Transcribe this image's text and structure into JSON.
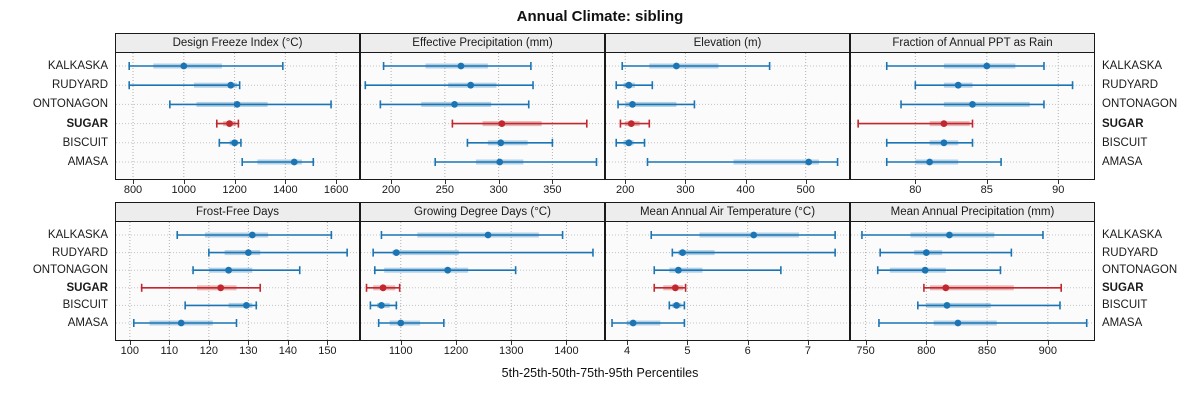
{
  "title": "Annual Climate: sibling",
  "caption": "5th-25th-50th-75th-95th Percentiles",
  "sites": [
    "KALKASKA",
    "RUDYARD",
    "ONTONAGON",
    "SUGAR",
    "BISCUIT",
    "AMASA"
  ],
  "highlight_site": "SUGAR",
  "colors": {
    "series_normal": "#1b75b5",
    "series_highlight": "#c1272d",
    "band_opacity": 0.32,
    "strip_bg": "#ededed",
    "panel_bg": "#fbfbfb",
    "grid": "#b0b0b0",
    "border": "#1a1a1a"
  },
  "chart_data": {
    "type": "percentile-dotplot-grid",
    "layout": "2 rows x 4 cols",
    "percentiles": [
      "5th",
      "25th",
      "50th",
      "75th",
      "95th"
    ],
    "grid": "dotted",
    "panels": [
      {
        "title": "Design Freeze Index (°C)",
        "ticks": [
          800,
          1000,
          1200,
          1400,
          1600
        ],
        "domain": [
          733,
          1690
        ],
        "series": {
          "KALKASKA": [
            785,
            880,
            1000,
            1150,
            1390
          ],
          "RUDYARD": [
            785,
            1040,
            1185,
            1210,
            1220
          ],
          "ONTONAGON": [
            945,
            1050,
            1210,
            1330,
            1580
          ],
          "SUGAR": [
            1130,
            1155,
            1180,
            1205,
            1215
          ],
          "BISCUIT": [
            1140,
            1180,
            1200,
            1215,
            1225
          ],
          "AMASA": [
            1230,
            1290,
            1435,
            1465,
            1510
          ]
        }
      },
      {
        "title": "Effective Precipitation (mm)",
        "ticks": [
          200,
          250,
          300,
          350
        ],
        "domain": [
          172,
          398
        ],
        "series": {
          "KALKASKA": [
            193,
            232,
            265,
            290,
            330
          ],
          "RUDYARD": [
            176,
            253,
            274,
            298,
            332
          ],
          "ONTONAGON": [
            190,
            228,
            259,
            293,
            328
          ],
          "SUGAR": [
            257,
            285,
            303,
            340,
            382
          ],
          "BISCUIT": [
            271,
            290,
            302,
            327,
            350
          ],
          "AMASA": [
            241,
            279,
            301,
            323,
            391
          ]
        }
      },
      {
        "title": "Elevation (m)",
        "ticks": [
          200,
          300,
          400,
          500
        ],
        "domain": [
          168,
          572
        ],
        "series": {
          "KALKASKA": [
            195,
            240,
            285,
            355,
            440
          ],
          "RUDYARD": [
            185,
            197,
            206,
            216,
            245
          ],
          "ONTONAGON": [
            188,
            200,
            212,
            285,
            315
          ],
          "SUGAR": [
            192,
            200,
            210,
            224,
            240
          ],
          "BISCUIT": [
            185,
            197,
            206,
            214,
            232
          ],
          "AMASA": [
            237,
            380,
            505,
            522,
            553
          ]
        }
      },
      {
        "title": "Fraction of Annual PPT as Rain",
        "ticks": [
          80,
          85,
          90
        ],
        "domain": [
          75.5,
          92.5
        ],
        "series": {
          "KALKASKA": [
            78,
            82,
            85,
            87,
            89
          ],
          "RUDYARD": [
            80,
            82,
            83,
            84,
            91
          ],
          "ONTONAGON": [
            79,
            82,
            84,
            88,
            89
          ],
          "SUGAR": [
            76,
            81,
            82,
            83.8,
            84
          ],
          "BISCUIT": [
            78,
            81,
            82,
            83,
            84
          ],
          "AMASA": [
            78,
            80,
            81,
            83,
            86
          ]
        }
      },
      {
        "title": "Frost-Free Days",
        "ticks": [
          100,
          110,
          120,
          130,
          140,
          150
        ],
        "domain": [
          96.5,
          158
        ],
        "series": {
          "KALKASKA": [
            112,
            119,
            131,
            135,
            151
          ],
          "RUDYARD": [
            120,
            124,
            130,
            133,
            155
          ],
          "ONTONAGON": [
            116,
            120,
            125,
            131,
            143
          ],
          "SUGAR": [
            103,
            117,
            123,
            127,
            133
          ],
          "BISCUIT": [
            114,
            125,
            129.5,
            131,
            132
          ],
          "AMASA": [
            101,
            105,
            113,
            121,
            127
          ]
        }
      },
      {
        "title": "Growing Degree Days (°C)",
        "ticks": [
          1100,
          1200,
          1300,
          1400
        ],
        "domain": [
          1028,
          1468
        ],
        "series": {
          "KALKASKA": [
            1065,
            1130,
            1258,
            1350,
            1393
          ],
          "RUDYARD": [
            1050,
            1085,
            1092,
            1205,
            1448
          ],
          "ONTONAGON": [
            1053,
            1070,
            1185,
            1222,
            1308
          ],
          "SUGAR": [
            1038,
            1050,
            1068,
            1090,
            1098
          ],
          "BISCUIT": [
            1045,
            1057,
            1065,
            1080,
            1092
          ],
          "AMASA": [
            1060,
            1080,
            1100,
            1135,
            1178
          ]
        }
      },
      {
        "title": "Mean Annual Air Temperature (°C)",
        "ticks": [
          4,
          5,
          6,
          7
        ],
        "domain": [
          3.65,
          7.68
        ],
        "series": {
          "KALKASKA": [
            4.4,
            5.2,
            6.1,
            6.85,
            7.45
          ],
          "RUDYARD": [
            4.75,
            4.85,
            4.92,
            5.45,
            7.45
          ],
          "ONTONAGON": [
            4.45,
            4.7,
            4.85,
            5.25,
            6.55
          ],
          "SUGAR": [
            4.45,
            4.6,
            4.8,
            4.93,
            4.97
          ],
          "BISCUIT": [
            4.7,
            4.75,
            4.82,
            4.9,
            4.95
          ],
          "AMASA": [
            3.75,
            4.0,
            4.1,
            4.55,
            4.95
          ]
        }
      },
      {
        "title": "Mean Annual Precipitation (mm)",
        "ticks": [
          750,
          800,
          850,
          900
        ],
        "domain": [
          738,
          938
        ],
        "series": {
          "KALKASKA": [
            747,
            787,
            819,
            856,
            896
          ],
          "RUDYARD": [
            762,
            790,
            800,
            813,
            870
          ],
          "ONTONAGON": [
            760,
            770,
            799,
            816,
            861
          ],
          "SUGAR": [
            798,
            803,
            816,
            872,
            911
          ],
          "BISCUIT": [
            793,
            800,
            817,
            853,
            910
          ],
          "AMASA": [
            761,
            806,
            826,
            858,
            932
          ]
        }
      }
    ]
  }
}
